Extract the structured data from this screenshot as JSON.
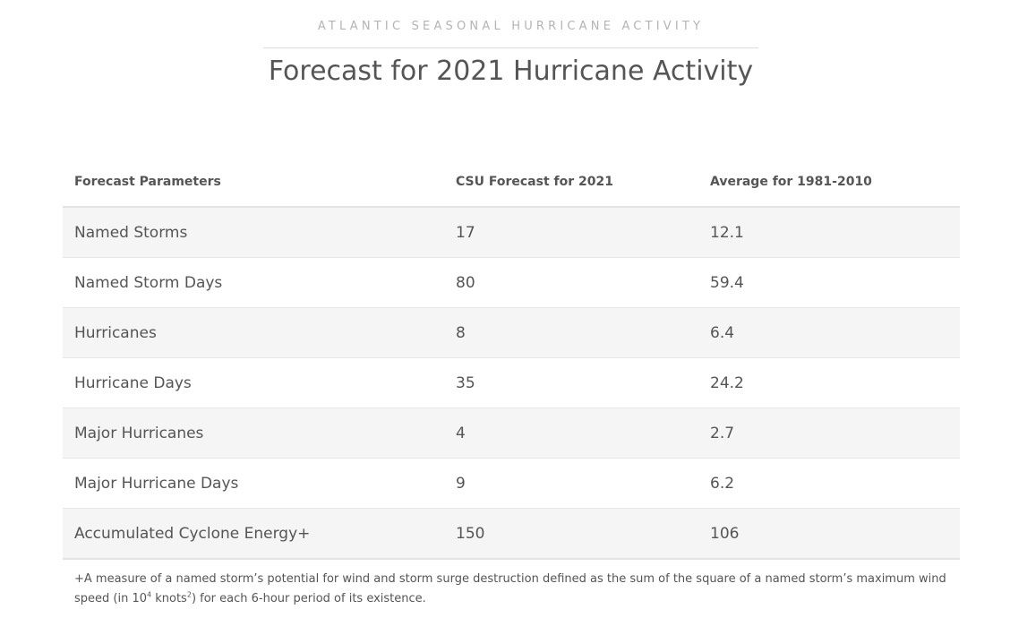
{
  "header": {
    "eyebrow": "ATLANTIC SEASONAL HURRICANE ACTIVITY",
    "title": "Forecast for 2021 Hurricane Activity"
  },
  "table": {
    "columns": [
      "Forecast Parameters",
      "CSU Forecast for 2021",
      "Average for 1981-2010"
    ],
    "rows": [
      [
        "Named Storms",
        "17",
        "12.1"
      ],
      [
        "Named Storm Days",
        "80",
        "59.4"
      ],
      [
        "Hurricanes",
        "8",
        "6.4"
      ],
      [
        "Hurricane Days",
        "35",
        "24.2"
      ],
      [
        "Major Hurricanes",
        "4",
        "2.7"
      ],
      [
        "Major Hurricane Days",
        "9",
        "6.2"
      ],
      [
        "Accumulated Cyclone Energy+",
        "150",
        "106"
      ]
    ]
  },
  "footnote": {
    "part1": "+A measure of a named storm’s potential for wind and storm surge destruction defined as the sum of the square of a named storm’s maximum wind speed (in 10",
    "sup1": "4",
    "part2": " knots",
    "sup2": "2",
    "part3": ") for each 6-hour period of its existence."
  }
}
